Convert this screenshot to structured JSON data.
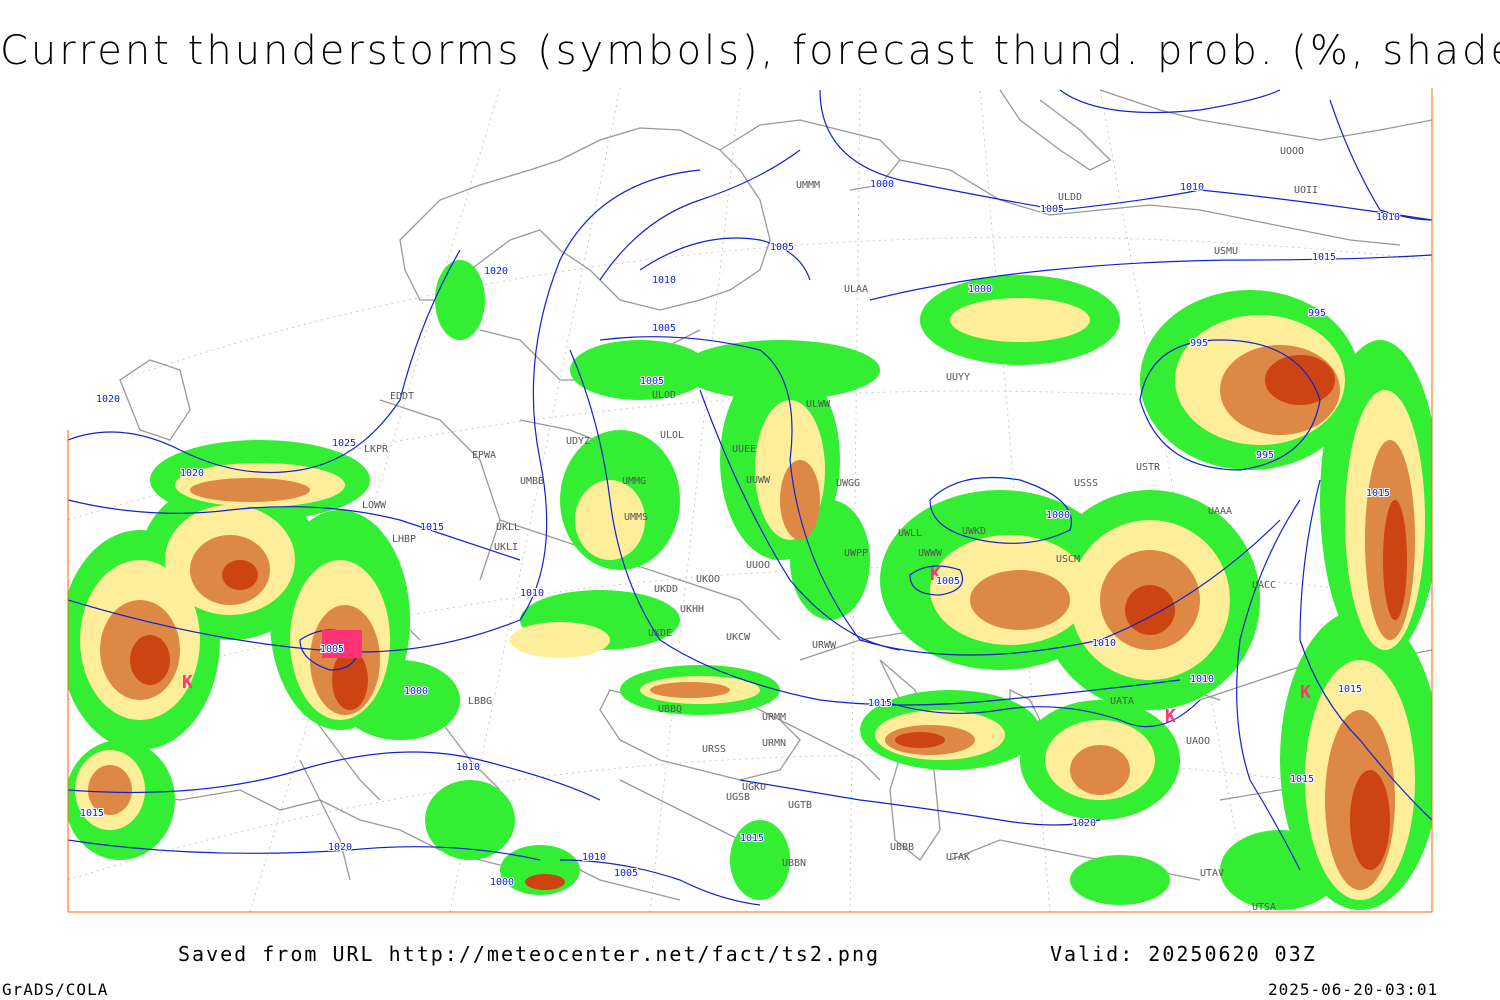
{
  "title": "Current thunderstorms (symbols), forecast thund. prob. (%, shaded)",
  "footer": {
    "source": "Saved from URL http://meteocenter.net/fact/ts2.png",
    "valid": "Valid: 20250620 03Z",
    "software": "GrADS/COLA",
    "timestamp": "2025-06-20-03:01"
  },
  "colors": {
    "prob_low": "#33ee33",
    "prob_mid": "#ffee99",
    "prob_high": "#dd8844",
    "prob_max": "#cc4411",
    "isobar": "#1122cc",
    "coastline": "#999999",
    "storm_symbol": "#ff3377"
  },
  "isobar_labels": [
    "1020",
    "1025",
    "1020",
    "1020",
    "1015",
    "1010",
    "1010",
    "1005",
    "1005",
    "1005",
    "1000",
    "1000",
    "995",
    "995",
    "995",
    "1000",
    "1005",
    "1010",
    "1010",
    "1015",
    "1015",
    "1015",
    "1015",
    "1015",
    "1010",
    "1010",
    "1005",
    "1000",
    "1005",
    "1010",
    "1015",
    "1020",
    "1015",
    "1010",
    "1000",
    "1005",
    "1020"
  ],
  "station_labels": [
    "ULOD",
    "ULOL",
    "ULWW",
    "UUEE",
    "UUWW",
    "UUOO",
    "UMMG",
    "UMMS",
    "UMBB",
    "UKLL",
    "UKLI",
    "UKDD",
    "UKHH",
    "UKOO",
    "UKDE",
    "UKCW",
    "URWW",
    "URSS",
    "URMM",
    "URMN",
    "UGKO",
    "UGSB",
    "UGTB",
    "UBBB",
    "UBBN",
    "UTAK",
    "UUYY",
    "USSS",
    "USTR",
    "USCM",
    "UWKD",
    "UWWW",
    "UWPP",
    "UWGG",
    "UWLL",
    "UACC",
    "UAOO",
    "UATA",
    "UAAA",
    "UTSA",
    "UTAV",
    "ULAA",
    "ULDD",
    "USMU",
    "UOOO",
    "UOII",
    "UMMM",
    "EPWA",
    "LKPR",
    "LOWW",
    "LHBP",
    "LBBG",
    "EDDT",
    "UDYZ",
    "UBBQ"
  ]
}
